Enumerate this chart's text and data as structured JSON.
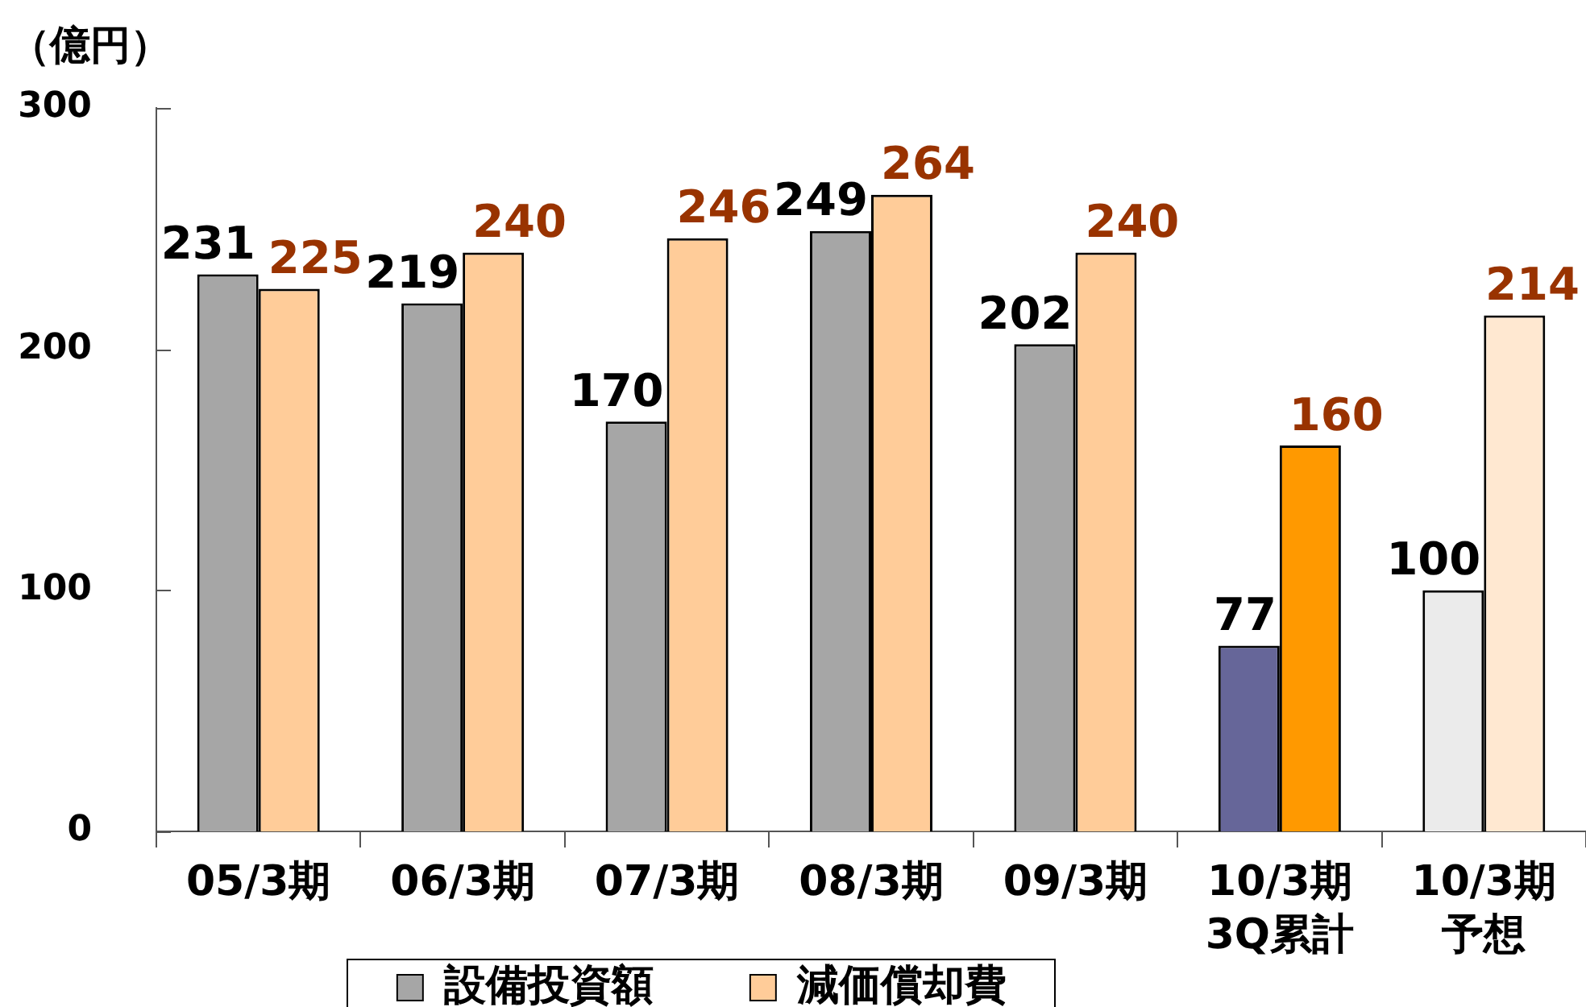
{
  "chart_data": {
    "type": "bar",
    "ylabel": "（億円）",
    "categories": [
      "05/3期",
      "06/3期",
      "07/3期",
      "08/3期",
      "09/3期",
      "10/3期3Q累計",
      "10/3期予想"
    ],
    "series": [
      {
        "name": "設備投資額",
        "color": "#a6a6a6",
        "colors": [
          "#a6a6a6",
          "#a6a6a6",
          "#a6a6a6",
          "#a6a6a6",
          "#a6a6a6",
          "#666699",
          "#ebebeb"
        ],
        "values": [
          231,
          219,
          170,
          249,
          202,
          77,
          100
        ]
      },
      {
        "name": "減価償却費",
        "color": "#ffcc99",
        "colors": [
          "#ffcc99",
          "#ffcc99",
          "#ffcc99",
          "#ffcc99",
          "#ffcc99",
          "#ff9900",
          "#ffe8d1"
        ],
        "values": [
          225,
          240,
          246,
          264,
          240,
          160,
          214
        ]
      }
    ],
    "ylim": [
      0,
      300
    ],
    "yticks": [
      0,
      100,
      200,
      300
    ],
    "grid": false,
    "legend": "bottom",
    "data_labels": true
  }
}
